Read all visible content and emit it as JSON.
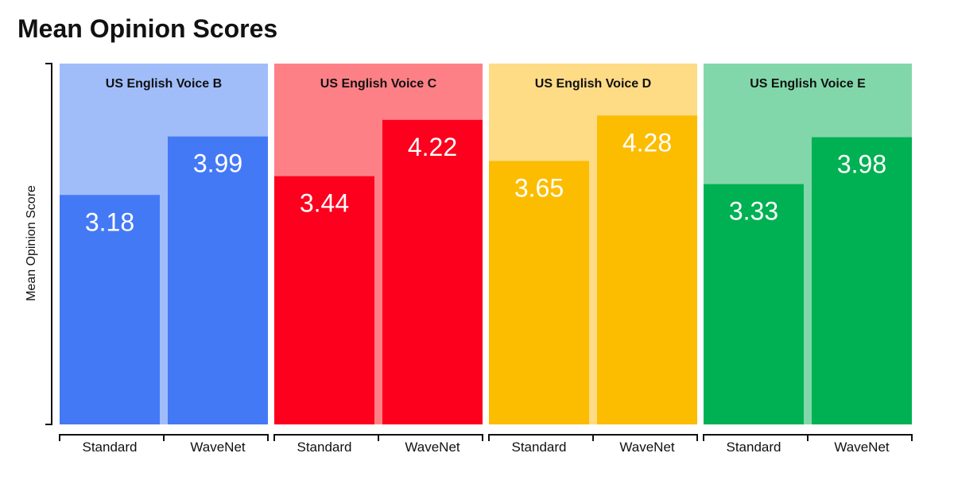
{
  "chart_data": {
    "type": "bar",
    "title": "Mean Opinion Scores",
    "ylabel": "Mean Opinion Score",
    "xlabel": "",
    "ylim": [
      0,
      5
    ],
    "categories": [
      "Standard",
      "WaveNet"
    ],
    "groups": [
      {
        "name": "US English Voice B",
        "colors": {
          "bg": "#a0bdfa",
          "bar": "#4479f6"
        },
        "values": [
          3.18,
          3.99
        ]
      },
      {
        "name": "US English Voice C",
        "colors": {
          "bg": "#fe8087",
          "bar": "#fc001d"
        },
        "values": [
          3.44,
          4.22
        ]
      },
      {
        "name": "US English Voice D",
        "colors": {
          "bg": "#fedb85",
          "bar": "#fcbc00"
        },
        "values": [
          3.65,
          4.28
        ]
      },
      {
        "name": "US English Voice E",
        "colors": {
          "bg": "#82d7aa",
          "bar": "#00b153"
        },
        "values": [
          3.33,
          3.98
        ]
      }
    ]
  }
}
